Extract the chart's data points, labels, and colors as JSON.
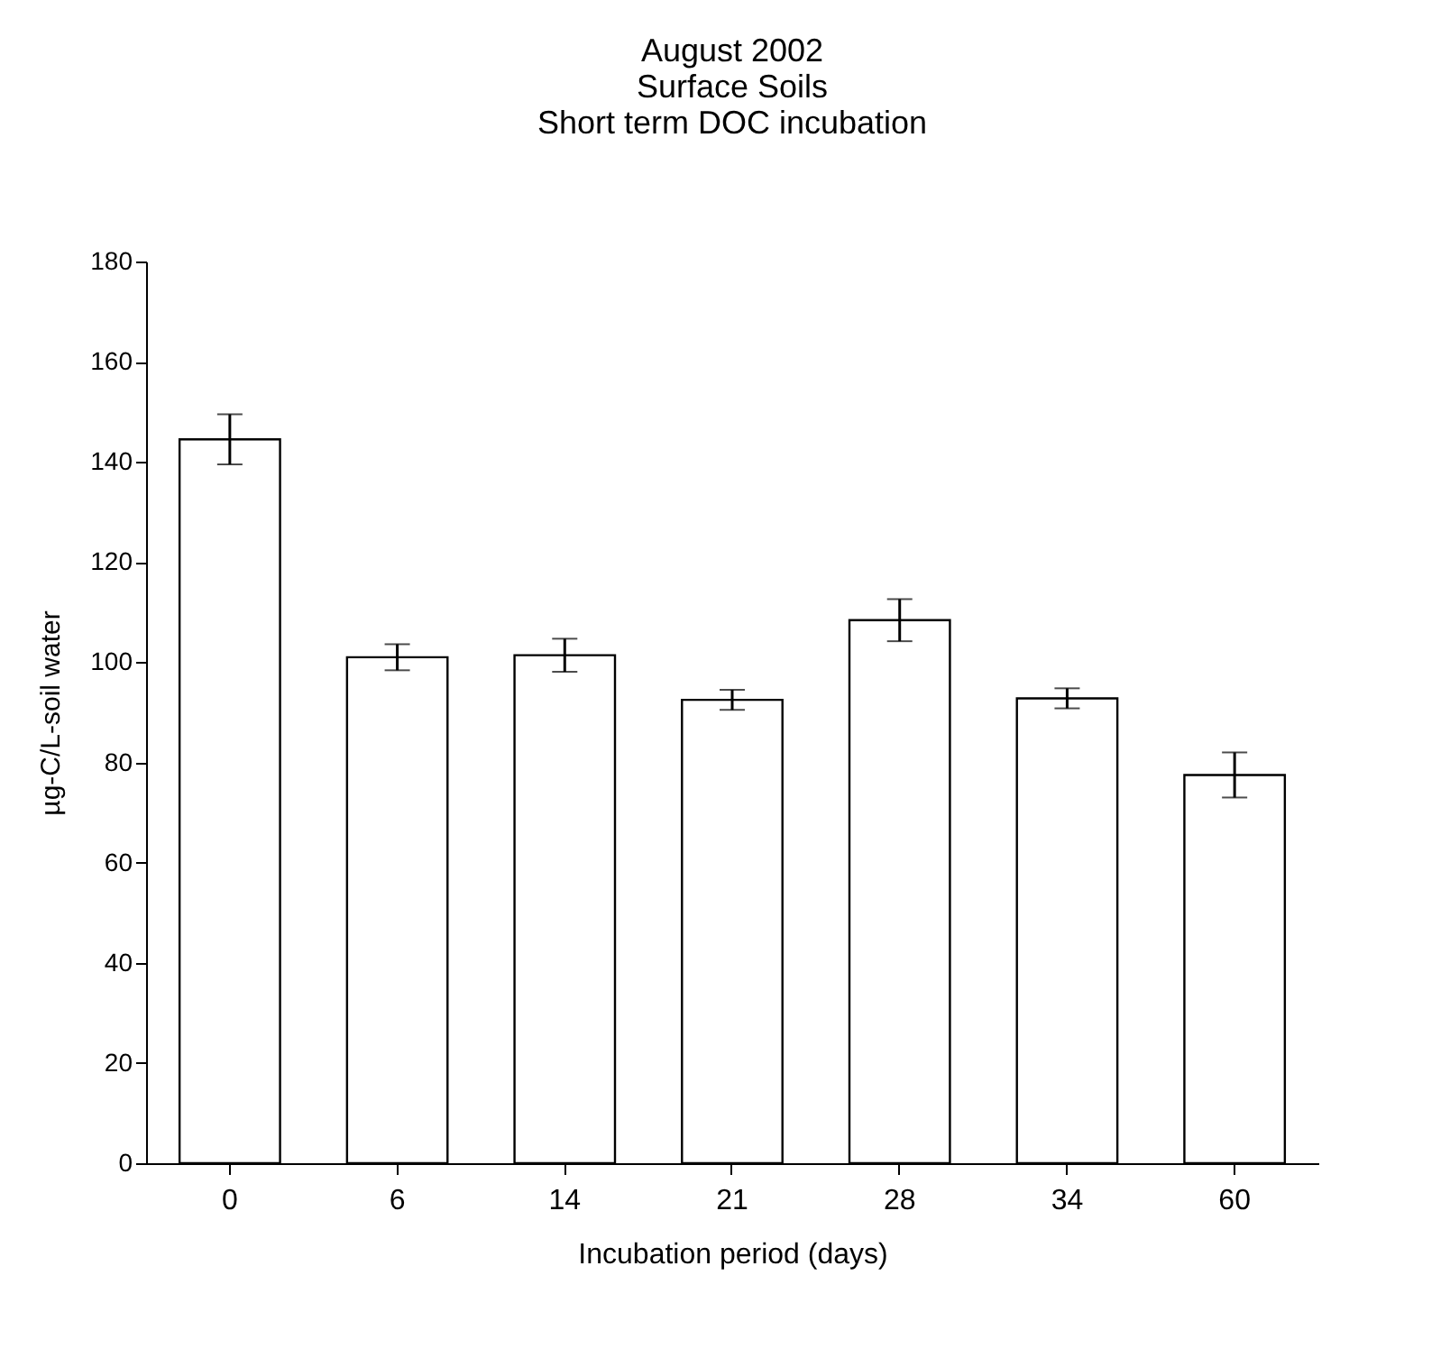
{
  "chart_data": {
    "type": "bar",
    "title": "August 2002\nSurface Soils\nShort term DOC incubation",
    "xlabel": "Incubation period (days)",
    "ylabel": "µg-C/L-soil water",
    "categories": [
      "0",
      "6",
      "14",
      "21",
      "28",
      "34",
      "60"
    ],
    "values": [
      144.5,
      101,
      101.4,
      92.5,
      108.4,
      92.8,
      77.5
    ],
    "errors": [
      5,
      2.6,
      3.3,
      2,
      4.2,
      2,
      4.5
    ],
    "color": "#ffffff",
    "ylim": [
      0,
      180
    ],
    "yticks": [
      0,
      20,
      40,
      60,
      80,
      100,
      120,
      140,
      160,
      180
    ],
    "grid": false
  }
}
